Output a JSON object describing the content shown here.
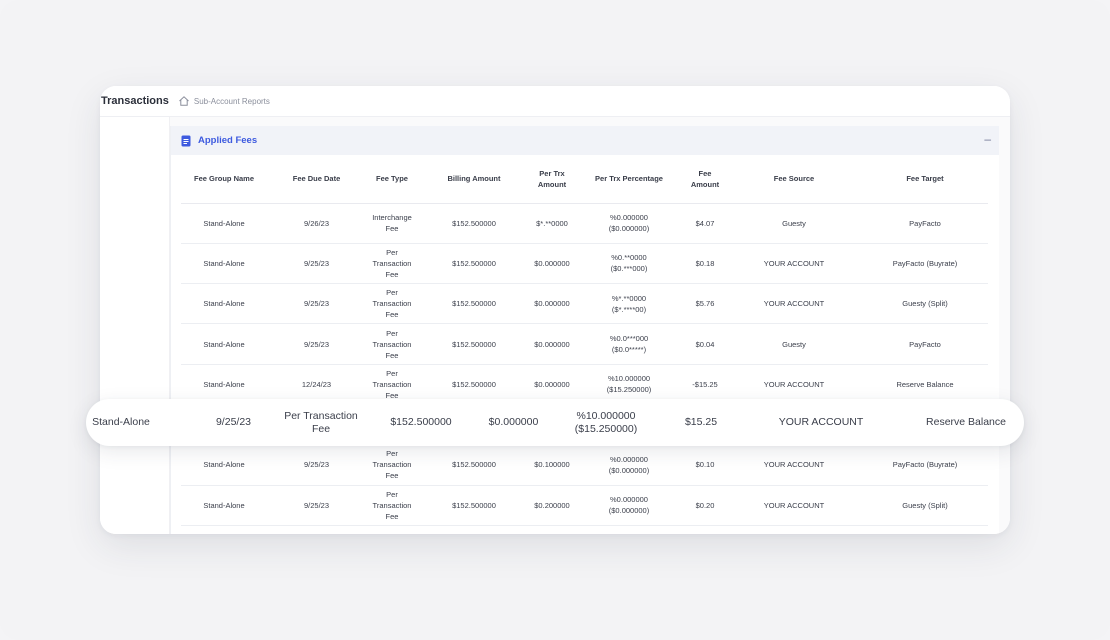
{
  "header": {
    "app_title": "Transactions",
    "breadcrumb": "Sub-Account Reports",
    "home_icon": "home-icon"
  },
  "panel": {
    "title": "Applied Fees",
    "icon": "document-icon",
    "collapse_label": "–",
    "accent_color": "#3d5adf"
  },
  "table": {
    "columns": [
      "Fee Group Name",
      "Fee Due Date",
      "Fee Type",
      "Billing Amount",
      "Per Trx Amount",
      "Per Trx Percentage",
      "Fee Amount",
      "Fee Source",
      "Fee Target"
    ],
    "rows": [
      [
        "Stand-Alone",
        "9/26/23",
        "Interchange Fee",
        "$152.500000",
        "$*.**0000",
        "%0.000000\n($0.000000)",
        "$4.07",
        "Guesty",
        "PayFacto"
      ],
      [
        "Stand-Alone",
        "9/25/23",
        "Per Transaction Fee",
        "$152.500000",
        "$0.000000",
        "%0.**0000\n($0.***000)",
        "$0.18",
        "YOUR ACCOUNT",
        "PayFacto (Buyrate)"
      ],
      [
        "Stand-Alone",
        "9/25/23",
        "Per Transaction Fee",
        "$152.500000",
        "$0.000000",
        "%*.**0000\n($*.****00)",
        "$5.76",
        "YOUR ACCOUNT",
        "Guesty (Split)"
      ],
      [
        "Stand-Alone",
        "9/25/23",
        "Per Transaction Fee",
        "$152.500000",
        "$0.000000",
        "%0.0***000\n($0.0*****)",
        "$0.04",
        "Guesty",
        "PayFacto"
      ],
      [
        "Stand-Alone",
        "12/24/23",
        "Per Transaction Fee",
        "$152.500000",
        "$0.000000",
        "%10.000000\n($15.250000)",
        "-$15.25",
        "YOUR ACCOUNT",
        "Reserve Balance"
      ],
      [
        "Stand-Alone",
        "9/25/23",
        "Per Transaction Fee",
        "$152.500000",
        "$0.000000",
        "%10.000000\n($15.250000)",
        "$15.25",
        "YOUR ACCOUNT",
        "Reserve Balance"
      ],
      [
        "Stand-Alone",
        "9/25/23",
        "Per Transaction Fee",
        "$152.500000",
        "$0.100000",
        "%0.000000\n($0.000000)",
        "$0.10",
        "YOUR ACCOUNT",
        "PayFacto (Buyrate)"
      ],
      [
        "Stand-Alone",
        "9/25/23",
        "Per Transaction Fee",
        "$152.500000",
        "$0.200000",
        "%0.000000\n($0.000000)",
        "$0.20",
        "YOUR ACCOUNT",
        "Guesty (Split)"
      ]
    ]
  },
  "highlight_row": [
    "Stand-Alone",
    "9/25/23",
    "Per Transaction\nFee",
    "$152.500000",
    "$0.000000",
    "%10.000000\n($15.250000)",
    "$15.25",
    "YOUR ACCOUNT",
    "Reserve Balance"
  ]
}
